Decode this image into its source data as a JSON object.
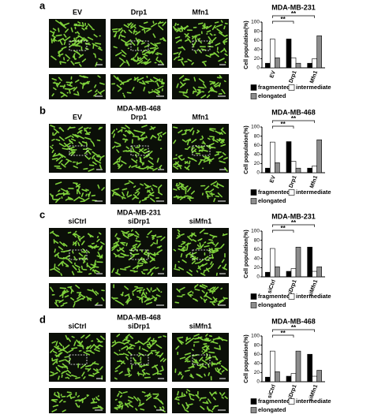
{
  "chart_data": [
    {
      "type": "bar",
      "panel": "a",
      "image_labels": [
        "EV",
        "Drp1",
        "Mfn1"
      ],
      "title": "MDA-MB-231",
      "ylabel": "Cell population(%)",
      "categories": [
        "EV",
        "Drp1",
        "Mfn1"
      ],
      "ylim": [
        0,
        100
      ],
      "yticks": [
        0,
        20,
        40,
        60,
        80,
        100
      ],
      "series": [
        {
          "name": "fragmented",
          "color": "#000000",
          "values": [
            10,
            63,
            10
          ]
        },
        {
          "name": "intermediate",
          "color": "#ffffff",
          "values": [
            63,
            22,
            20
          ]
        },
        {
          "name": "elongated",
          "color": "#8c8c8c",
          "values": [
            22,
            10,
            70
          ]
        }
      ],
      "annotations": [
        "**",
        "**"
      ]
    },
    {
      "type": "bar",
      "panel": "b",
      "image_title": "MDA-MB-468",
      "image_labels": [
        "EV",
        "Drp1",
        "Mfn1"
      ],
      "title": "MDA-MB-468",
      "ylabel": "Cell population(%)",
      "categories": [
        "EV",
        "Drp1",
        "Mfn1"
      ],
      "ylim": [
        0,
        100
      ],
      "yticks": [
        0,
        20,
        40,
        60,
        80,
        100
      ],
      "series": [
        {
          "name": "fragmented",
          "color": "#000000",
          "values": [
            10,
            68,
            10
          ]
        },
        {
          "name": "intermediate",
          "color": "#ffffff",
          "values": [
            67,
            25,
            15
          ]
        },
        {
          "name": "elongated",
          "color": "#8c8c8c",
          "values": [
            22,
            10,
            72
          ]
        }
      ],
      "annotations": [
        "**",
        "**"
      ]
    },
    {
      "type": "bar",
      "panel": "c",
      "image_title": "MDA-MB-231",
      "image_labels": [
        "siCtrl",
        "siDrp1",
        "siMfn1"
      ],
      "title": "MDA-MB-231",
      "ylabel": "Cell population(%)",
      "categories": [
        "siCtrl",
        "siDrp1",
        "siMfn1"
      ],
      "ylim": [
        0,
        100
      ],
      "yticks": [
        0,
        20,
        40,
        60,
        80,
        100
      ],
      "series": [
        {
          "name": "fragmented",
          "color": "#000000",
          "values": [
            10,
            12,
            65
          ]
        },
        {
          "name": "intermediate",
          "color": "#ffffff",
          "values": [
            62,
            18,
            12
          ]
        },
        {
          "name": "elongated",
          "color": "#8c8c8c",
          "values": [
            22,
            65,
            22
          ]
        }
      ],
      "annotations": [
        "**",
        "**"
      ]
    },
    {
      "type": "bar",
      "panel": "d",
      "image_title": "MDA-MB-468",
      "image_labels": [
        "siCtrl",
        "siDrp1",
        "siMfn1"
      ],
      "title": "MDA-MB-468",
      "ylabel": "Cell population(%)",
      "categories": [
        "siCtrl",
        "siDrp1",
        "siMfn1"
      ],
      "ylim": [
        0,
        100
      ],
      "yticks": [
        0,
        20,
        40,
        60,
        80,
        100
      ],
      "series": [
        {
          "name": "fragmented",
          "color": "#000000",
          "values": [
            10,
            12,
            60
          ]
        },
        {
          "name": "intermediate",
          "color": "#ffffff",
          "values": [
            67,
            18,
            12
          ]
        },
        {
          "name": "elongated",
          "color": "#8c8c8c",
          "values": [
            22,
            67,
            25
          ]
        }
      ],
      "annotations": [
        "**",
        "**"
      ]
    }
  ]
}
